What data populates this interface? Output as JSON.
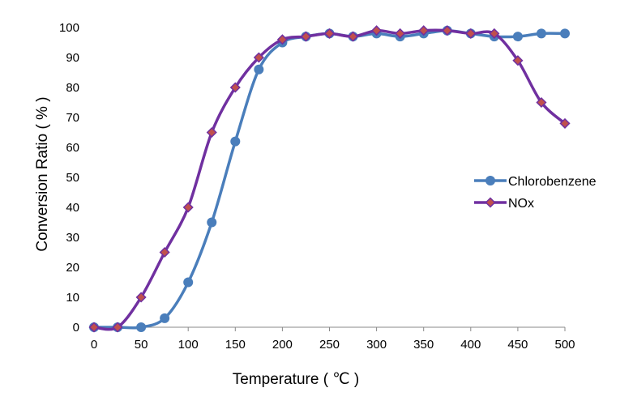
{
  "chart_data": {
    "type": "line",
    "title": "",
    "xlabel": "Temperature ( ℃ )",
    "ylabel": "Conversion Ratio ( % )",
    "x": [
      0,
      25,
      50,
      75,
      100,
      125,
      150,
      175,
      200,
      225,
      250,
      275,
      300,
      325,
      350,
      375,
      400,
      425,
      450,
      475,
      500
    ],
    "xticks": [
      "0",
      "50",
      "100",
      "150",
      "200",
      "250",
      "300",
      "350",
      "400",
      "450",
      "500"
    ],
    "yticks": [
      "0",
      "10",
      "20",
      "30",
      "40",
      "50",
      "60",
      "70",
      "80",
      "90",
      "100"
    ],
    "xlim": [
      0,
      500
    ],
    "ylim": [
      0,
      100
    ],
    "grid": false,
    "legend_position": "right",
    "series": [
      {
        "name": "Chlorobenzene",
        "color": "#4a7ebb",
        "marker": "circle",
        "values": [
          0,
          0,
          0,
          3,
          15,
          35,
          62,
          86,
          95,
          97,
          98,
          97,
          98,
          97,
          98,
          99,
          98,
          97,
          97,
          98,
          98
        ]
      },
      {
        "name": "NOx",
        "color": "#7030a0",
        "marker": "diamond",
        "marker_color": "#c0504d",
        "values": [
          0,
          0,
          10,
          25,
          40,
          65,
          80,
          90,
          96,
          97,
          98,
          97,
          99,
          98,
          99,
          99,
          98,
          98,
          89,
          75,
          68
        ]
      }
    ]
  }
}
